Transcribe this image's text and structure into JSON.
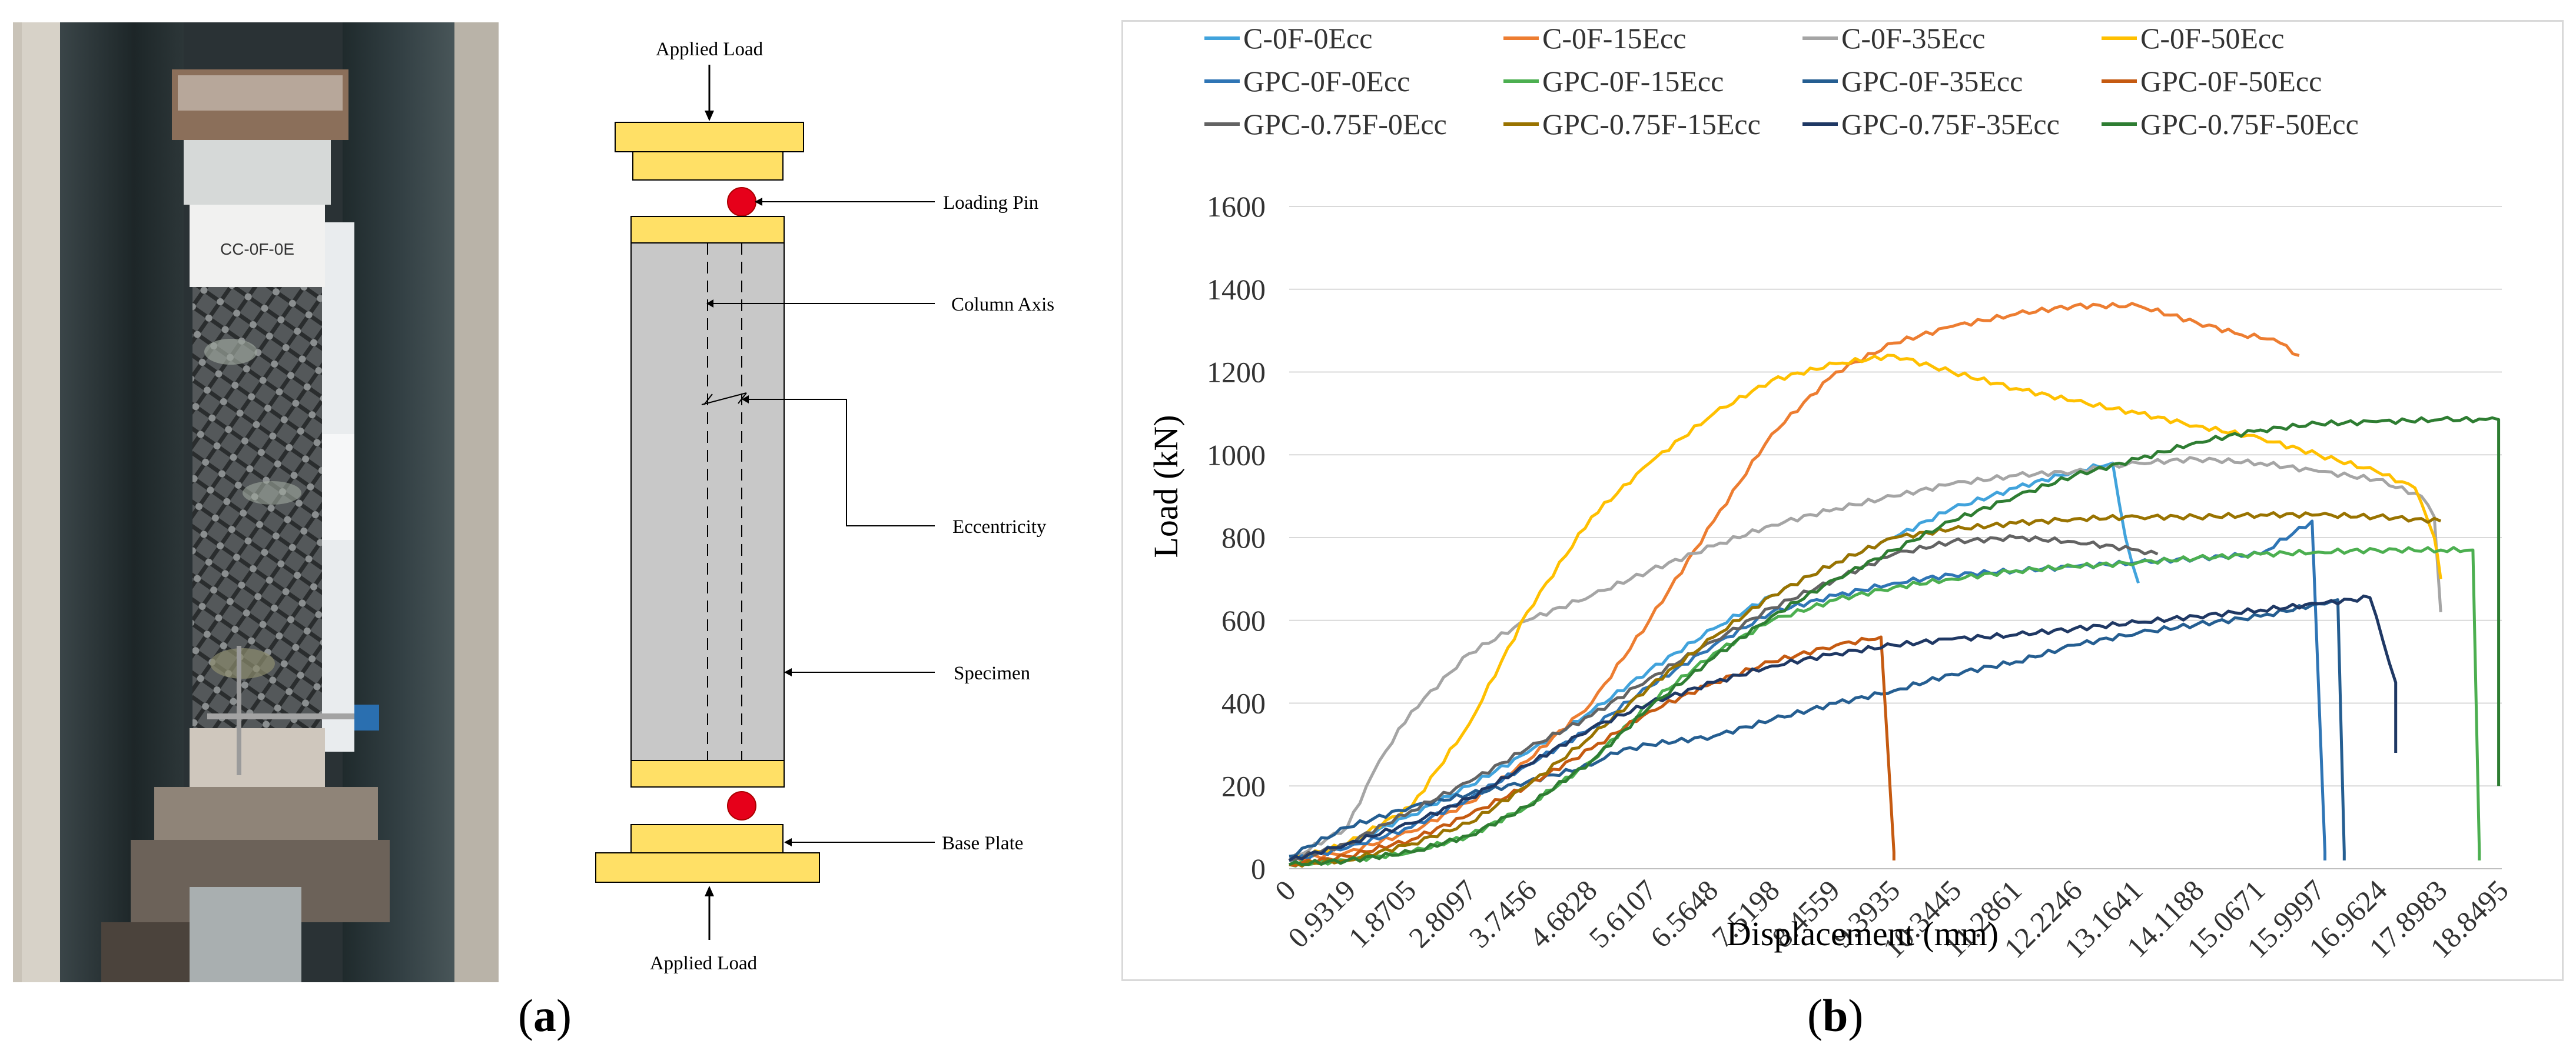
{
  "captions": {
    "a": "a",
    "b": "b"
  },
  "photo": {
    "specimen_tag": "CC-0F-0E"
  },
  "diagram": {
    "labels": {
      "applied_load_top": "Applied Load",
      "loading_pin": "Loading Pin",
      "column_axis": "Column Axis",
      "eccentricity": "Eccentricity",
      "specimen": "Specimen",
      "base_plate": "Base Plate",
      "applied_load_bottom": "Applied Load"
    },
    "colors": {
      "plate": "#ffe066",
      "pin": "#e6001a",
      "specimen": "#c8c8c8"
    }
  },
  "chart_data": {
    "type": "line",
    "title": "",
    "xlabel": "Displacement (mm)",
    "ylabel": "Load (kN)",
    "xlim": [
      0,
      18.8495
    ],
    "ylim": [
      0,
      1600
    ],
    "yticks": [
      "0",
      "200",
      "400",
      "600",
      "800",
      "1000",
      "1200",
      "1400",
      "1600"
    ],
    "xticks": [
      "0",
      "0.9319",
      "1.8705",
      "2.8097",
      "3.7456",
      "4.6828",
      "5.6107",
      "6.5648",
      "7.5198",
      "8.4559",
      "9.3935",
      "10.3445",
      "11.2861",
      "12.2246",
      "13.1641",
      "14.1188",
      "15.0671",
      "15.9997",
      "16.9624",
      "17.8983",
      "18.8495"
    ],
    "grid": true,
    "legend_position": "top",
    "series": [
      {
        "name": "C-0F-0Ecc",
        "color": "#41a3dc",
        "x": [
          0,
          0.9,
          1.9,
          2.8,
          3.7,
          4.7,
          5.6,
          6.6,
          7.5,
          8.5,
          9.4,
          10.3,
          11.3,
          12.2,
          12.8,
          13.0,
          13.2
        ],
        "y": [
          20,
          60,
          130,
          200,
          280,
          380,
          480,
          580,
          660,
          740,
          800,
          870,
          920,
          960,
          980,
          800,
          690
        ]
      },
      {
        "name": "C-0F-15Ecc",
        "color": "#ed7d31",
        "x": [
          0,
          0.9,
          1.9,
          2.8,
          3.7,
          4.7,
          5.6,
          6.6,
          7.5,
          8.5,
          9.4,
          10.3,
          11.3,
          12.2,
          13.2,
          14.1,
          14.8,
          15.3,
          15.7
        ],
        "y": [
          20,
          40,
          90,
          160,
          260,
          400,
          600,
          840,
          1050,
          1200,
          1270,
          1310,
          1340,
          1360,
          1360,
          1320,
          1290,
          1280,
          1240
        ]
      },
      {
        "name": "C-0F-35Ecc",
        "color": "#a5a5a5",
        "x": [
          0,
          0.9,
          1.4,
          1.9,
          2.8,
          3.7,
          4.7,
          5.6,
          6.6,
          7.5,
          8.5,
          9.4,
          10.3,
          11.3,
          12.2,
          13.2,
          14.1,
          15.1,
          16.0,
          16.9,
          17.6,
          17.8,
          17.9
        ],
        "y": [
          20,
          100,
          260,
          380,
          520,
          600,
          660,
          720,
          780,
          830,
          870,
          900,
          930,
          950,
          960,
          980,
          990,
          980,
          960,
          940,
          900,
          850,
          620
        ]
      },
      {
        "name": "C-0F-50Ecc",
        "color": "#ffc000",
        "x": [
          0,
          0.9,
          1.9,
          2.8,
          3.7,
          4.7,
          5.6,
          6.6,
          7.5,
          8.5,
          9.4,
          10.3,
          11.3,
          12.2,
          13.2,
          14.1,
          15.1,
          16.0,
          16.9,
          17.5,
          17.8,
          17.9
        ],
        "y": [
          20,
          60,
          150,
          350,
          620,
          850,
          980,
          1100,
          1180,
          1220,
          1240,
          1200,
          1160,
          1130,
          1100,
          1070,
          1040,
          1000,
          960,
          920,
          800,
          700
        ]
      },
      {
        "name": "GPC-0F-0Ecc",
        "color": "#2f75b5",
        "x": [
          0,
          0.9,
          1.9,
          2.8,
          3.7,
          4.7,
          5.6,
          6.6,
          7.5,
          8.5,
          9.4,
          10.3,
          11.3,
          12.2,
          13.2,
          14.1,
          15.1,
          15.9,
          16.1,
          16.1
        ],
        "y": [
          20,
          50,
          100,
          170,
          250,
          340,
          440,
          540,
          620,
          660,
          690,
          710,
          720,
          730,
          740,
          750,
          760,
          840,
          40,
          20
        ]
      },
      {
        "name": "GPC-0F-15Ecc",
        "color": "#4caf50",
        "x": [
          0,
          0.9,
          1.9,
          2.8,
          3.7,
          4.7,
          5.6,
          6.6,
          7.5,
          8.5,
          9.4,
          10.3,
          11.3,
          12.2,
          13.2,
          14.1,
          15.1,
          16.0,
          16.9,
          17.9,
          18.4,
          18.5,
          18.5
        ],
        "y": [
          10,
          20,
          40,
          80,
          150,
          260,
          400,
          520,
          600,
          650,
          680,
          700,
          720,
          730,
          740,
          750,
          760,
          765,
          770,
          770,
          770,
          40,
          20
        ]
      },
      {
        "name": "GPC-0F-35Ecc",
        "color": "#255e91",
        "x": [
          0,
          0.9,
          1.9,
          2.8,
          3.7,
          4.7,
          5.0,
          5.6,
          6.6,
          7.5,
          8.5,
          9.4,
          10.3,
          11.3,
          12.2,
          13.2,
          14.1,
          15.1,
          16.0,
          16.3,
          16.4,
          16.4
        ],
        "y": [
          30,
          100,
          150,
          180,
          210,
          250,
          280,
          300,
          320,
          360,
          400,
          430,
          470,
          500,
          540,
          570,
          590,
          610,
          640,
          650,
          40,
          20
        ]
      },
      {
        "name": "GPC-0F-50Ecc",
        "color": "#c55a11",
        "x": [
          0,
          0.9,
          1.9,
          2.8,
          3.7,
          4.7,
          5.6,
          6.6,
          7.5,
          8.5,
          9.2,
          9.4,
          9.4
        ],
        "y": [
          10,
          30,
          70,
          130,
          200,
          290,
          380,
          450,
          500,
          540,
          560,
          40,
          20
        ]
      },
      {
        "name": "GPC-0.75F-0Ecc",
        "color": "#636363",
        "x": [
          0,
          0.9,
          1.9,
          2.8,
          3.7,
          4.7,
          5.6,
          6.6,
          7.5,
          8.5,
          9.4,
          10.3,
          11.3,
          12.2,
          13.2,
          13.5
        ],
        "y": [
          20,
          60,
          140,
          210,
          290,
          370,
          460,
          550,
          630,
          700,
          760,
          790,
          800,
          790,
          770,
          760
        ]
      },
      {
        "name": "GPC-0.75F-15Ecc",
        "color": "#997300",
        "x": [
          0,
          0.9,
          1.9,
          2.8,
          3.7,
          4.7,
          5.6,
          6.6,
          7.5,
          8.5,
          9.4,
          10.3,
          11.3,
          12.2,
          13.2,
          14.1,
          15.1,
          16.0,
          16.9,
          17.5,
          17.9
        ],
        "y": [
          10,
          20,
          60,
          110,
          200,
          320,
          440,
          560,
          660,
          740,
          800,
          820,
          835,
          845,
          850,
          850,
          855,
          855,
          850,
          845,
          840
        ]
      },
      {
        "name": "GPC-0.75F-35Ecc",
        "color": "#1f3864",
        "x": [
          0,
          0.9,
          1.9,
          2.8,
          3.7,
          4.7,
          5.6,
          6.6,
          7.5,
          8.5,
          9.4,
          10.3,
          11.3,
          12.2,
          13.2,
          14.1,
          15.1,
          16.0,
          16.8,
          17.2,
          17.2
        ],
        "y": [
          20,
          60,
          110,
          170,
          250,
          340,
          400,
          450,
          490,
          520,
          540,
          555,
          565,
          580,
          595,
          610,
          625,
          640,
          655,
          450,
          280
        ]
      },
      {
        "name": "GPC-0.75F-50Ecc",
        "color": "#2e7d32",
        "x": [
          0,
          0.9,
          1.9,
          2.8,
          3.7,
          4.7,
          5.6,
          6.6,
          7.5,
          8.5,
          9.4,
          10.3,
          11.3,
          12.2,
          13.2,
          14.1,
          15.1,
          16.0,
          16.9,
          17.9,
          18.6,
          18.8,
          18.8
        ],
        "y": [
          10,
          20,
          40,
          80,
          150,
          260,
          390,
          510,
          610,
          700,
          770,
          840,
          900,
          950,
          990,
          1030,
          1060,
          1075,
          1080,
          1085,
          1085,
          1085,
          200
        ]
      }
    ]
  }
}
